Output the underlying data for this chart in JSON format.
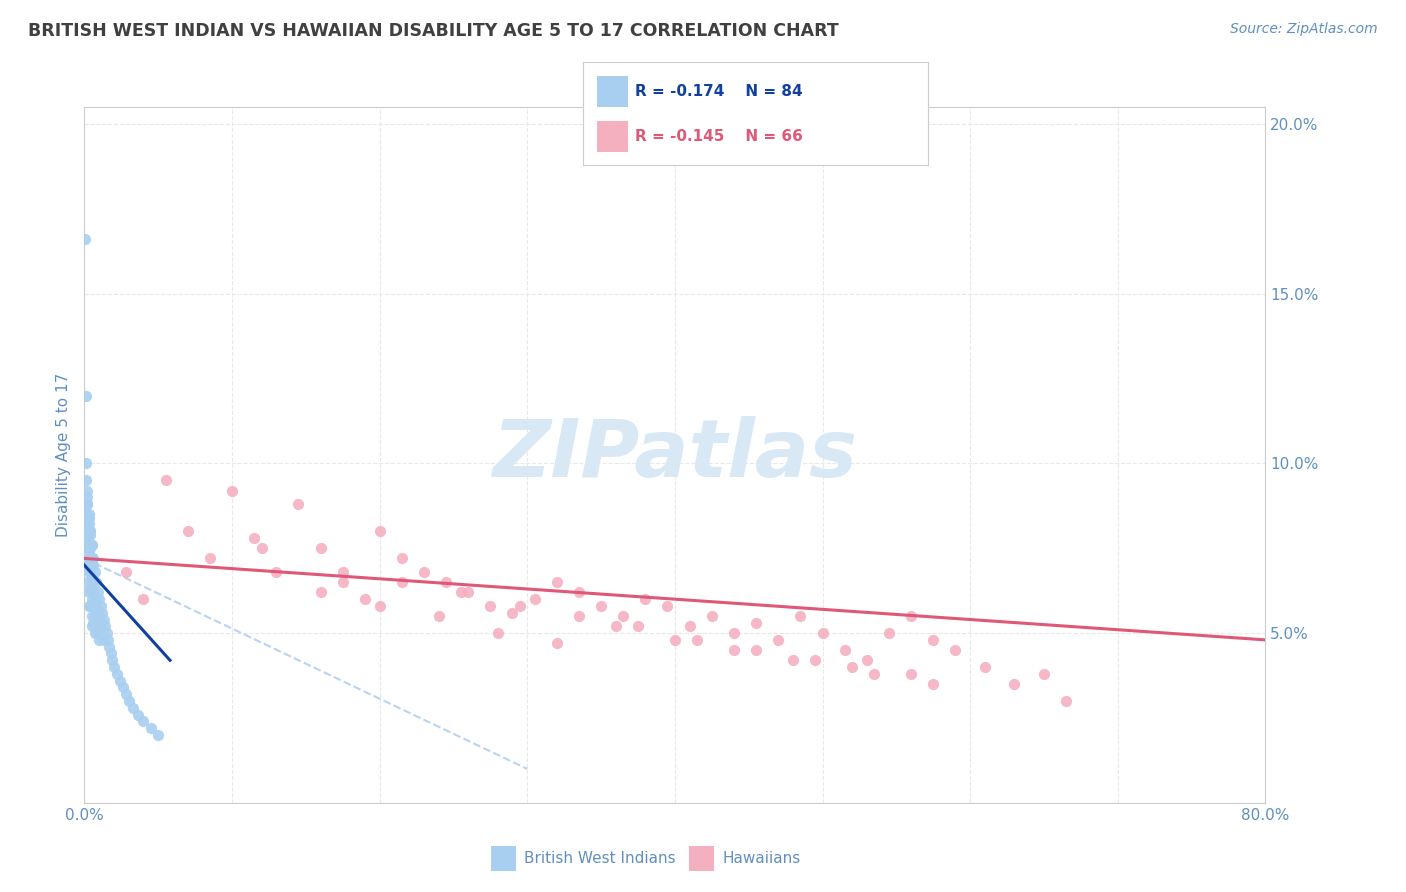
{
  "title": "BRITISH WEST INDIAN VS HAWAIIAN DISABILITY AGE 5 TO 17 CORRELATION CHART",
  "source": "Source: ZipAtlas.com",
  "ylabel": "Disability Age 5 to 17",
  "xlim": [
    0.0,
    0.8
  ],
  "ylim": [
    0.0,
    0.205
  ],
  "xticks": [
    0.0,
    0.1,
    0.2,
    0.3,
    0.4,
    0.5,
    0.6,
    0.7,
    0.8
  ],
  "xticklabels": [
    "0.0%",
    "",
    "",
    "",
    "",
    "",
    "",
    "",
    "80.0%"
  ],
  "yticks": [
    0.0,
    0.05,
    0.1,
    0.15,
    0.2
  ],
  "yticklabels_right": [
    "",
    "5.0%",
    "10.0%",
    "15.0%",
    "20.0%"
  ],
  "legend_blue_r": "R = -0.174",
  "legend_blue_n": "N = 84",
  "legend_pink_r": "R = -0.145",
  "legend_pink_n": "N = 66",
  "blue_color": "#a8cff0",
  "pink_color": "#f5b0c0",
  "blue_line_color": "#1040a0",
  "pink_line_color": "#e05878",
  "dashed_line_color": "#b8d4f0",
  "watermark_color": "#d8e8f5",
  "title_color": "#404040",
  "tick_label_color": "#6090c0",
  "source_color": "#6090c0",
  "legend_border_color": "#cccccc",
  "grid_color": "#e8e8e8",
  "grid_style": "--",
  "background_color": "#ffffff",
  "blue_scatter_x": [
    0.0005,
    0.001,
    0.001,
    0.001,
    0.0015,
    0.002,
    0.002,
    0.002,
    0.002,
    0.003,
    0.003,
    0.003,
    0.003,
    0.003,
    0.004,
    0.004,
    0.004,
    0.004,
    0.005,
    0.005,
    0.005,
    0.005,
    0.005,
    0.006,
    0.006,
    0.006,
    0.006,
    0.007,
    0.007,
    0.007,
    0.007,
    0.008,
    0.008,
    0.008,
    0.009,
    0.009,
    0.009,
    0.01,
    0.01,
    0.01,
    0.011,
    0.011,
    0.012,
    0.012,
    0.013,
    0.013,
    0.014,
    0.015,
    0.016,
    0.017,
    0.018,
    0.019,
    0.02,
    0.022,
    0.024,
    0.026,
    0.028,
    0.03,
    0.033,
    0.036,
    0.04,
    0.045,
    0.05,
    0.001,
    0.002,
    0.003,
    0.004,
    0.005,
    0.006,
    0.007,
    0.008,
    0.004,
    0.005,
    0.006,
    0.003,
    0.004,
    0.005,
    0.002,
    0.003,
    0.002,
    0.001,
    0.002,
    0.003,
    0.004
  ],
  "blue_scatter_y": [
    0.166,
    0.12,
    0.1,
    0.085,
    0.078,
    0.09,
    0.075,
    0.07,
    0.065,
    0.08,
    0.072,
    0.068,
    0.062,
    0.058,
    0.075,
    0.068,
    0.063,
    0.058,
    0.072,
    0.065,
    0.06,
    0.055,
    0.052,
    0.07,
    0.062,
    0.058,
    0.053,
    0.068,
    0.06,
    0.055,
    0.05,
    0.065,
    0.058,
    0.052,
    0.062,
    0.056,
    0.05,
    0.06,
    0.054,
    0.048,
    0.058,
    0.052,
    0.056,
    0.05,
    0.054,
    0.048,
    0.052,
    0.05,
    0.048,
    0.046,
    0.044,
    0.042,
    0.04,
    0.038,
    0.036,
    0.034,
    0.032,
    0.03,
    0.028,
    0.026,
    0.024,
    0.022,
    0.02,
    0.082,
    0.078,
    0.074,
    0.07,
    0.066,
    0.062,
    0.058,
    0.054,
    0.08,
    0.076,
    0.072,
    0.085,
    0.08,
    0.076,
    0.088,
    0.082,
    0.092,
    0.095,
    0.088,
    0.084,
    0.079
  ],
  "pink_scatter_x": [
    0.028,
    0.04,
    0.055,
    0.07,
    0.085,
    0.1,
    0.115,
    0.13,
    0.145,
    0.16,
    0.175,
    0.19,
    0.2,
    0.215,
    0.23,
    0.245,
    0.26,
    0.275,
    0.29,
    0.305,
    0.32,
    0.335,
    0.35,
    0.365,
    0.38,
    0.395,
    0.41,
    0.425,
    0.44,
    0.455,
    0.47,
    0.485,
    0.5,
    0.515,
    0.53,
    0.545,
    0.56,
    0.575,
    0.59,
    0.61,
    0.63,
    0.65,
    0.665,
    0.12,
    0.16,
    0.2,
    0.24,
    0.28,
    0.32,
    0.36,
    0.4,
    0.44,
    0.48,
    0.52,
    0.56,
    0.175,
    0.215,
    0.255,
    0.295,
    0.335,
    0.375,
    0.415,
    0.455,
    0.495,
    0.535,
    0.575
  ],
  "pink_scatter_y": [
    0.068,
    0.06,
    0.095,
    0.08,
    0.072,
    0.092,
    0.078,
    0.068,
    0.088,
    0.075,
    0.065,
    0.06,
    0.08,
    0.072,
    0.068,
    0.065,
    0.062,
    0.058,
    0.056,
    0.06,
    0.065,
    0.062,
    0.058,
    0.055,
    0.06,
    0.058,
    0.052,
    0.055,
    0.05,
    0.053,
    0.048,
    0.055,
    0.05,
    0.045,
    0.042,
    0.05,
    0.055,
    0.048,
    0.045,
    0.04,
    0.035,
    0.038,
    0.03,
    0.075,
    0.062,
    0.058,
    0.055,
    0.05,
    0.047,
    0.052,
    0.048,
    0.045,
    0.042,
    0.04,
    0.038,
    0.068,
    0.065,
    0.062,
    0.058,
    0.055,
    0.052,
    0.048,
    0.045,
    0.042,
    0.038,
    0.035
  ],
  "blue_trend_x": [
    0.0,
    0.058
  ],
  "blue_trend_y": [
    0.07,
    0.042
  ],
  "pink_trend_x": [
    0.0,
    0.8
  ],
  "pink_trend_y": [
    0.072,
    0.048
  ],
  "dashed_trend_x": [
    0.0,
    0.3
  ],
  "dashed_trend_y": [
    0.072,
    0.01
  ]
}
